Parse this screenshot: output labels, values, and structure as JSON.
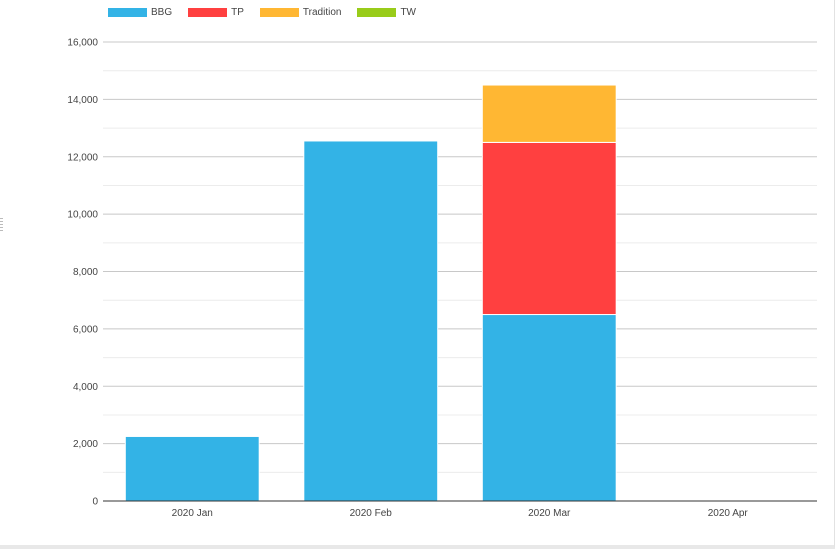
{
  "chart_data": {
    "type": "bar",
    "stacked": true,
    "categories": [
      "2020 Jan",
      "2020 Feb",
      "2020 Mar",
      "2020 Apr"
    ],
    "series": [
      {
        "name": "BBG",
        "color": "#33b3e6",
        "values": [
          2250,
          12550,
          6500,
          0
        ]
      },
      {
        "name": "TP",
        "color": "#ff4040",
        "values": [
          0,
          0,
          6000,
          0
        ]
      },
      {
        "name": "Tradition",
        "color": "#ffb733",
        "values": [
          0,
          0,
          2000,
          0
        ]
      },
      {
        "name": "TW",
        "color": "#99cc1a",
        "values": [
          0,
          0,
          0,
          0
        ]
      }
    ],
    "y_ticks": [
      "0",
      "2,000",
      "4,000",
      "6,000",
      "8,000",
      "10,000",
      "12,000",
      "14,000",
      "16,000"
    ],
    "ylim": [
      0,
      16000
    ],
    "grid": true,
    "legend_position": "top-left",
    "title": "",
    "xlabel": "",
    "ylabel": ""
  }
}
